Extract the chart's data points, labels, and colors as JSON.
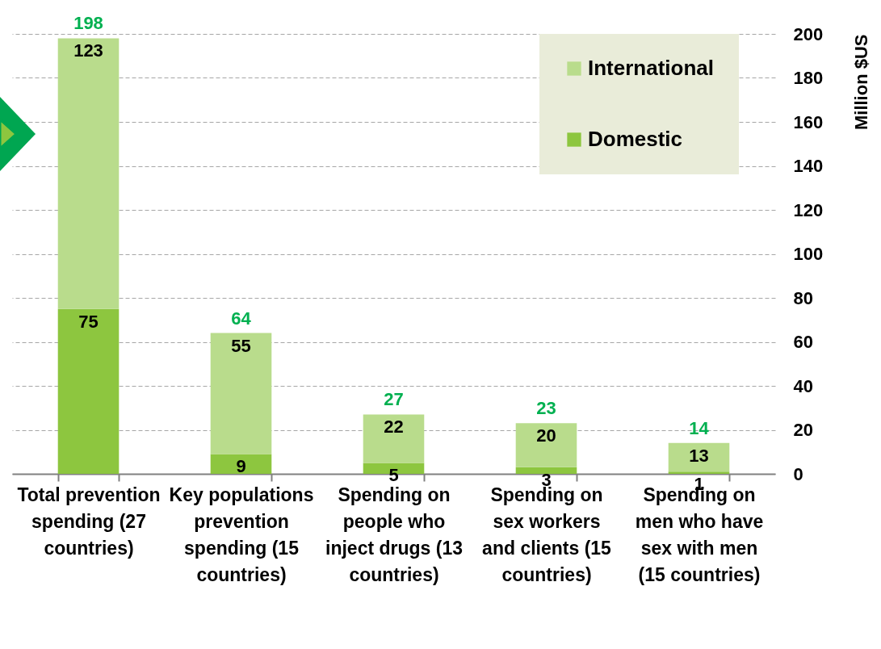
{
  "chart_data": {
    "type": "bar",
    "stacked": true,
    "categories": [
      "Total prevention spending (27 countries)",
      "Key populations prevention spending (15 countries)",
      "Spending on people who inject drugs (13 countries)",
      "Spending on sex workers and clients (15 countries)",
      "Spending on men who have sex with men (15 countries)"
    ],
    "series": [
      {
        "name": "Domestic",
        "color": "#8dc63f",
        "values": [
          75,
          9,
          5,
          3,
          1
        ]
      },
      {
        "name": "International",
        "color": "#b9dc8c",
        "values": [
          123,
          55,
          22,
          20,
          13
        ]
      }
    ],
    "totals": [
      "198",
      "64",
      "27",
      "23",
      "14"
    ],
    "data_labels": true,
    "ylabel": "Million $US",
    "ylim": [
      0,
      200
    ],
    "yticks": [
      0,
      20,
      40,
      60,
      80,
      100,
      120,
      140,
      160,
      180,
      200
    ],
    "grid": "y",
    "legend": "top right"
  }
}
